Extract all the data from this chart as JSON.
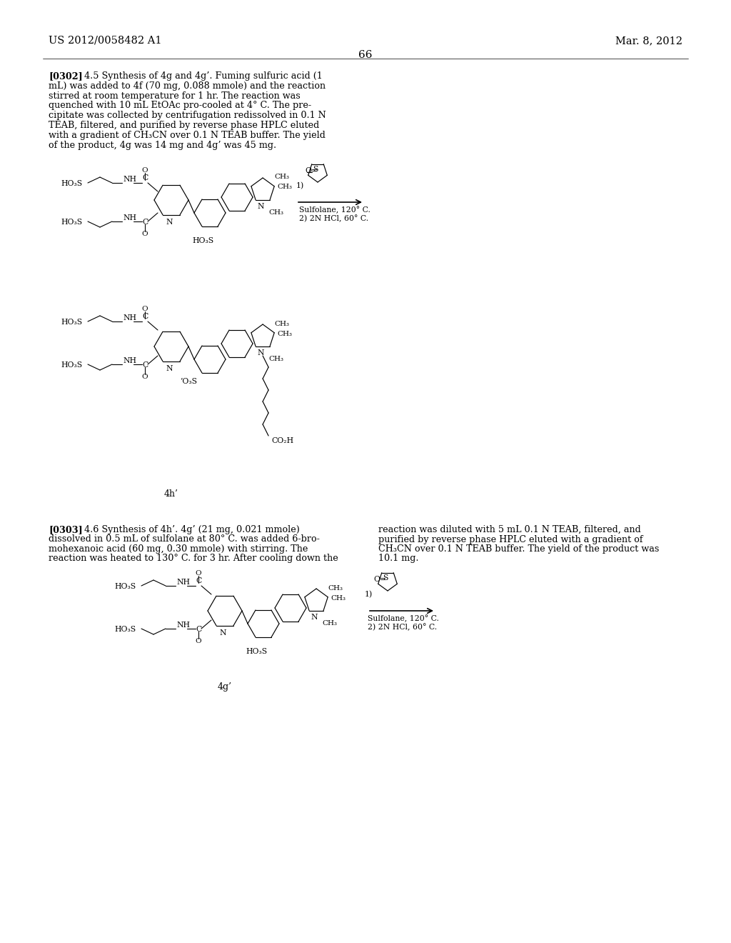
{
  "bg_color": "#ffffff",
  "header_left": "US 2012/0058482 A1",
  "header_right": "Mar. 8, 2012",
  "page_number": "66",
  "lines_302": [
    "[0302]   4.5 Synthesis of 4g and 4g’. Fuming sulfuric acid (1",
    "mL) was added to 4f (70 mg, 0.088 mmole) and the reaction",
    "stirred at room temperature for 1 hr. The reaction was",
    "quenched with 10 mL EtOAc pro-cooled at 4° C. The pre-",
    "cipitate was collected by centrifugation redissolved in 0.1 N",
    "TEAB, filtered, and purified by reverse phase HPLC eluted",
    "with a gradient of CH₃CN over 0.1 N TEAB buffer. The yield",
    "of the product, 4g was 14 mg and 4g’ was 45 mg."
  ],
  "lines_303_left": [
    "[0303]   4.6 Synthesis of 4h’. 4g’ (21 mg, 0.021 mmole)",
    "dissolved in 0.5 mL of sulfolane at 80° C. was added 6-bro-",
    "mohexanoic acid (60 mg, 0.30 mmole) with stirring. The",
    "reaction was heated to 130° C. for 3 hr. After cooling down the"
  ],
  "lines_303_right": [
    "reaction was diluted with 5 mL 0.1 N TEAB, filtered, and",
    "purified by reverse phase HPLC eluted with a gradient of",
    "CH₃CN over 0.1 N TEAB buffer. The yield of the product was",
    "10.1 mg."
  ],
  "rxn1_conditions": [
    "1)",
    "Sulfolane, 120° C.",
    "2) 2N HCl, 60° C."
  ],
  "rxn2_conditions": [
    "1)",
    "Sulfolane, 120° C.",
    "2) 2N HCl, 60° C."
  ],
  "label_4h": "4h’",
  "label_4g": "4g’"
}
